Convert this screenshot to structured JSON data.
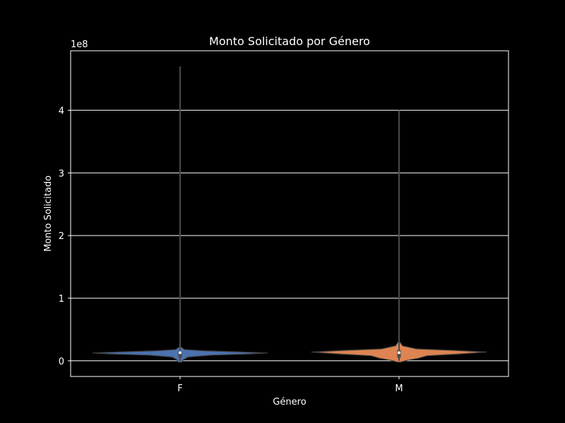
{
  "chart_data": {
    "type": "violin",
    "title": "Monto Solicitado por Género",
    "xlabel": "Género",
    "ylabel": "Monto Solicitado",
    "y_offset_label": "1e8",
    "categories": [
      "F",
      "M"
    ],
    "ylim": [
      -25000000,
      495000000
    ],
    "y_ticks": [
      0,
      100000000,
      200000000,
      300000000,
      400000000
    ],
    "y_tick_labels": [
      "0",
      "1",
      "2",
      "3",
      "4"
    ],
    "grid": "y",
    "series": [
      {
        "category": "F",
        "color": "#4c72b0",
        "min": 0,
        "max": 470000000,
        "q1": 5000000,
        "median": 13000000,
        "q3": 15000000,
        "width_profile": [
          {
            "y": -2000000,
            "w": 0.02
          },
          {
            "y": 2000000,
            "w": 0.04
          },
          {
            "y": 6000000,
            "w": 0.09
          },
          {
            "y": 9000000,
            "w": 0.35
          },
          {
            "y": 11000000,
            "w": 0.8
          },
          {
            "y": 12500000,
            "w": 1.0
          },
          {
            "y": 14000000,
            "w": 0.72
          },
          {
            "y": 16000000,
            "w": 0.28
          },
          {
            "y": 18000000,
            "w": 0.05
          },
          {
            "y": 22000000,
            "w": 0.01
          }
        ]
      },
      {
        "category": "M",
        "color": "#dd8452",
        "min": 0,
        "max": 400000000,
        "q1": 5000000,
        "median": 13000000,
        "q3": 17000000,
        "width_profile": [
          {
            "y": -2000000,
            "w": 0.02
          },
          {
            "y": 1000000,
            "w": 0.1
          },
          {
            "y": 4000000,
            "w": 0.22
          },
          {
            "y": 8000000,
            "w": 0.32
          },
          {
            "y": 11000000,
            "w": 0.7
          },
          {
            "y": 14000000,
            "w": 1.0
          },
          {
            "y": 16500000,
            "w": 0.65
          },
          {
            "y": 19000000,
            "w": 0.2
          },
          {
            "y": 24000000,
            "w": 0.04
          },
          {
            "y": 30000000,
            "w": 0.01
          }
        ]
      }
    ]
  }
}
